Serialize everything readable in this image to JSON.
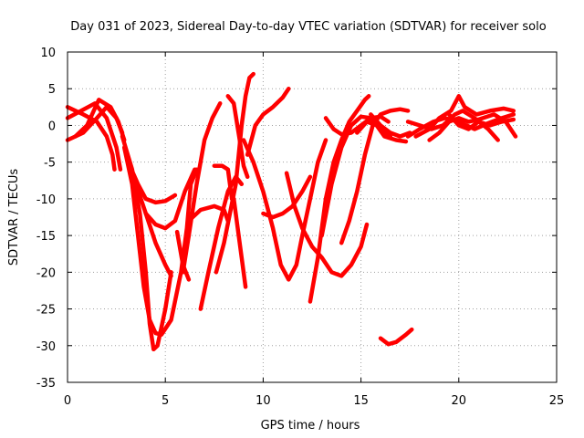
{
  "chart_data": {
    "type": "line",
    "title": "Day 031 of 2023, Sidereal Day-to-day VTEC variation (SDTVAR) for receiver solo",
    "xlabel": "GPS time / hours",
    "ylabel": "SDTVAR / TECUs",
    "xlim": [
      0,
      25
    ],
    "ylim": [
      -35,
      10
    ],
    "xticks": [
      "0",
      "5",
      "10",
      "15",
      "20",
      "25"
    ],
    "yticks": [
      "10",
      "5",
      "0",
      "-5",
      "-10",
      "-15",
      "-20",
      "-25",
      "-30",
      "-35"
    ],
    "xtick_values": [
      0,
      5,
      10,
      15,
      20,
      25
    ],
    "ytick_values": [
      10,
      5,
      0,
      -5,
      -10,
      -15,
      -20,
      -25,
      -30,
      -35
    ],
    "grid": true,
    "color": "#ff0000",
    "series": [
      {
        "name": "trace-1",
        "points": [
          [
            0,
            2.5
          ],
          [
            0.8,
            1.5
          ],
          [
            1.5,
            0.5
          ],
          [
            2.0,
            -1.5
          ],
          [
            2.3,
            -4
          ],
          [
            2.4,
            -6
          ]
        ]
      },
      {
        "name": "trace-2",
        "points": [
          [
            0,
            1
          ],
          [
            0.7,
            2
          ],
          [
            1.4,
            3
          ],
          [
            2.0,
            1
          ],
          [
            2.5,
            -3
          ],
          [
            2.7,
            -6
          ]
        ]
      },
      {
        "name": "trace-3",
        "points": [
          [
            0,
            -2
          ],
          [
            0.8,
            -1
          ],
          [
            1.5,
            1
          ],
          [
            2.0,
            2.5
          ],
          [
            2.5,
            1
          ],
          [
            2.8,
            -1
          ]
        ]
      },
      {
        "name": "trace-4",
        "points": [
          [
            0.4,
            -1.5
          ],
          [
            1.0,
            0
          ],
          [
            1.6,
            3.5
          ],
          [
            2.2,
            2.5
          ],
          [
            2.6,
            0.5
          ],
          [
            2.9,
            -2
          ]
        ]
      },
      {
        "name": "trace-5",
        "points": [
          [
            2.8,
            -1.5
          ],
          [
            3.3,
            -6
          ],
          [
            3.7,
            -12
          ],
          [
            4.0,
            -20
          ],
          [
            4.2,
            -27
          ],
          [
            4.4,
            -30.5
          ],
          [
            4.6,
            -30
          ],
          [
            5.0,
            -25
          ],
          [
            5.3,
            -20
          ]
        ]
      },
      {
        "name": "trace-6",
        "points": [
          [
            2.9,
            -3
          ],
          [
            3.3,
            -8
          ],
          [
            3.6,
            -15
          ],
          [
            3.9,
            -22
          ],
          [
            4.2,
            -26.5
          ],
          [
            4.5,
            -28.3
          ],
          [
            4.8,
            -28.5
          ],
          [
            5.3,
            -26.5
          ],
          [
            5.8,
            -20
          ],
          [
            6.1,
            -14
          ],
          [
            6.3,
            -8
          ],
          [
            6.6,
            -6
          ]
        ]
      },
      {
        "name": "trace-7",
        "points": [
          [
            3.0,
            -4
          ],
          [
            3.5,
            -8
          ],
          [
            4.0,
            -12
          ],
          [
            4.5,
            -13.5
          ],
          [
            5.0,
            -14
          ],
          [
            5.5,
            -13
          ],
          [
            6.0,
            -9
          ],
          [
            6.5,
            -6
          ]
        ]
      },
      {
        "name": "trace-8",
        "points": [
          [
            3.1,
            -5
          ],
          [
            3.6,
            -8
          ],
          [
            4.0,
            -10
          ],
          [
            4.5,
            -10.5
          ],
          [
            5.0,
            -10.3
          ],
          [
            5.5,
            -9.5
          ]
        ]
      },
      {
        "name": "trace-9",
        "points": [
          [
            4.0,
            -12
          ],
          [
            4.5,
            -16
          ],
          [
            5.0,
            -19
          ],
          [
            5.3,
            -20.5
          ]
        ]
      },
      {
        "name": "trace-10",
        "points": [
          [
            5.6,
            -14.5
          ],
          [
            5.9,
            -19
          ],
          [
            6.2,
            -21
          ]
        ]
      },
      {
        "name": "trace-11",
        "points": [
          [
            5.9,
            -20
          ],
          [
            6.2,
            -15
          ],
          [
            6.6,
            -8
          ],
          [
            7.0,
            -2
          ],
          [
            7.4,
            1
          ],
          [
            7.8,
            3
          ]
        ]
      },
      {
        "name": "trace-12",
        "points": [
          [
            6.2,
            -13
          ],
          [
            6.8,
            -11.5
          ],
          [
            7.5,
            -11
          ],
          [
            8.0,
            -11.5
          ],
          [
            8.2,
            -13
          ]
        ]
      },
      {
        "name": "trace-13",
        "points": [
          [
            6.8,
            -25
          ],
          [
            7.2,
            -20
          ],
          [
            7.7,
            -14
          ],
          [
            8.2,
            -9
          ],
          [
            8.6,
            -7
          ],
          [
            8.9,
            -8
          ]
        ]
      },
      {
        "name": "trace-14",
        "points": [
          [
            7.5,
            -5.5
          ],
          [
            7.9,
            -5.5
          ],
          [
            8.2,
            -6
          ],
          [
            8.4,
            -10
          ]
        ]
      },
      {
        "name": "trace-15",
        "points": [
          [
            7.6,
            -20
          ],
          [
            8.0,
            -16
          ],
          [
            8.6,
            -8
          ],
          [
            8.9,
            0
          ],
          [
            9.1,
            4
          ],
          [
            9.3,
            6.5
          ],
          [
            9.5,
            7
          ]
        ]
      },
      {
        "name": "trace-16",
        "points": [
          [
            8.2,
            4
          ],
          [
            8.5,
            3
          ],
          [
            8.8,
            -2
          ],
          [
            9.0,
            -5.5
          ],
          [
            9.2,
            -7
          ]
        ]
      },
      {
        "name": "trace-17",
        "points": [
          [
            8.5,
            -10
          ],
          [
            8.7,
            -14
          ],
          [
            8.9,
            -18
          ],
          [
            9.1,
            -22
          ]
        ]
      },
      {
        "name": "trace-18",
        "points": [
          [
            9.0,
            -2
          ],
          [
            9.5,
            -5
          ],
          [
            10.0,
            -9
          ],
          [
            10.5,
            -14
          ],
          [
            10.9,
            -19
          ],
          [
            11.3,
            -21
          ],
          [
            11.7,
            -19
          ],
          [
            12.0,
            -15
          ],
          [
            12.4,
            -10
          ],
          [
            12.8,
            -5
          ],
          [
            13.2,
            -2
          ]
        ]
      },
      {
        "name": "trace-19",
        "points": [
          [
            9.2,
            -4
          ],
          [
            9.6,
            0
          ],
          [
            10.0,
            1.5
          ],
          [
            10.5,
            2.5
          ],
          [
            11.0,
            3.8
          ],
          [
            11.3,
            5
          ]
        ]
      },
      {
        "name": "trace-20",
        "points": [
          [
            10.0,
            -12
          ],
          [
            10.5,
            -12.5
          ],
          [
            11.0,
            -12
          ],
          [
            11.5,
            -11
          ],
          [
            12.0,
            -9
          ],
          [
            12.4,
            -7
          ]
        ]
      },
      {
        "name": "trace-21",
        "points": [
          [
            11.2,
            -6.5
          ],
          [
            11.6,
            -11
          ],
          [
            12.0,
            -14
          ],
          [
            12.5,
            -16.5
          ],
          [
            13.0,
            -18
          ],
          [
            13.5,
            -20
          ],
          [
            14.0,
            -20.5
          ],
          [
            14.5,
            -19
          ],
          [
            15.0,
            -16.5
          ],
          [
            15.3,
            -13.5
          ]
        ]
      },
      {
        "name": "trace-22",
        "points": [
          [
            12.4,
            -24
          ],
          [
            12.8,
            -18
          ],
          [
            13.2,
            -10
          ],
          [
            13.6,
            -5
          ],
          [
            14.0,
            -2
          ],
          [
            14.4,
            0.5
          ],
          [
            14.8,
            2
          ],
          [
            15.2,
            3.5
          ],
          [
            15.4,
            4
          ]
        ]
      },
      {
        "name": "trace-23",
        "points": [
          [
            13.0,
            -15
          ],
          [
            13.5,
            -8
          ],
          [
            14.0,
            -3
          ],
          [
            14.5,
            0
          ],
          [
            15.0,
            1.2
          ],
          [
            15.5,
            1
          ],
          [
            16.0,
            -0.5
          ],
          [
            16.5,
            -1.5
          ]
        ]
      },
      {
        "name": "trace-24",
        "points": [
          [
            13.2,
            1
          ],
          [
            13.6,
            -0.5
          ],
          [
            14.0,
            -1.2
          ],
          [
            14.5,
            -1
          ],
          [
            15.0,
            0
          ],
          [
            15.5,
            1
          ],
          [
            16.0,
            1.2
          ],
          [
            16.4,
            0.5
          ]
        ]
      },
      {
        "name": "trace-25",
        "points": [
          [
            14.0,
            -16
          ],
          [
            14.4,
            -13
          ],
          [
            14.8,
            -9
          ],
          [
            15.2,
            -4
          ],
          [
            15.6,
            0
          ],
          [
            16.0,
            1.5
          ],
          [
            16.5,
            2
          ],
          [
            17.0,
            2.2
          ],
          [
            17.4,
            2
          ]
        ]
      },
      {
        "name": "trace-26",
        "points": [
          [
            14.8,
            -1
          ],
          [
            15.3,
            0.5
          ],
          [
            15.8,
            0
          ],
          [
            16.2,
            -1.5
          ],
          [
            16.8,
            -2
          ],
          [
            17.3,
            -2.2
          ]
        ]
      },
      {
        "name": "trace-27",
        "points": [
          [
            15.5,
            1.5
          ],
          [
            16.0,
            0
          ],
          [
            16.5,
            -1
          ],
          [
            17.0,
            -1.5
          ],
          [
            17.5,
            -1
          ]
        ]
      },
      {
        "name": "trace-28",
        "points": [
          [
            16.0,
            -29
          ],
          [
            16.4,
            -29.8
          ],
          [
            16.8,
            -29.5
          ],
          [
            17.3,
            -28.5
          ],
          [
            17.6,
            -27.8
          ]
        ]
      },
      {
        "name": "trace-29",
        "points": [
          [
            17.4,
            -1.5
          ],
          [
            18.0,
            -0.5
          ],
          [
            18.7,
            0.5
          ],
          [
            19.3,
            1
          ],
          [
            20.0,
            0.5
          ],
          [
            20.8,
            -0.5
          ],
          [
            21.5,
            0.3
          ],
          [
            22.2,
            1
          ],
          [
            22.8,
            1.5
          ]
        ]
      },
      {
        "name": "trace-30",
        "points": [
          [
            17.4,
            0.5
          ],
          [
            18.0,
            0
          ],
          [
            18.6,
            -0.5
          ],
          [
            19.2,
            0
          ],
          [
            19.8,
            1.5
          ],
          [
            20.2,
            2
          ],
          [
            20.8,
            1
          ],
          [
            21.5,
            -0.5
          ],
          [
            22.0,
            -2
          ]
        ]
      },
      {
        "name": "trace-31",
        "points": [
          [
            17.8,
            -1.5
          ],
          [
            18.5,
            -0.5
          ],
          [
            19.0,
            1
          ],
          [
            19.6,
            2
          ],
          [
            20.0,
            4
          ],
          [
            20.3,
            2.5
          ],
          [
            20.9,
            1.5
          ],
          [
            21.6,
            2
          ],
          [
            22.3,
            2.3
          ],
          [
            22.8,
            2
          ]
        ]
      },
      {
        "name": "trace-32",
        "points": [
          [
            18.5,
            -2
          ],
          [
            19.0,
            -1
          ],
          [
            19.5,
            0.5
          ],
          [
            20.0,
            1
          ],
          [
            20.5,
            0.5
          ],
          [
            21.0,
            0.8
          ],
          [
            21.8,
            1.5
          ],
          [
            22.4,
            0.5
          ],
          [
            22.9,
            -1.5
          ]
        ]
      },
      {
        "name": "trace-33",
        "points": [
          [
            19.5,
            1.5
          ],
          [
            20.0,
            0
          ],
          [
            20.5,
            -0.5
          ],
          [
            21.0,
            0.5
          ],
          [
            21.6,
            0
          ],
          [
            22.2,
            0.5
          ],
          [
            22.8,
            0.8
          ]
        ]
      }
    ]
  }
}
